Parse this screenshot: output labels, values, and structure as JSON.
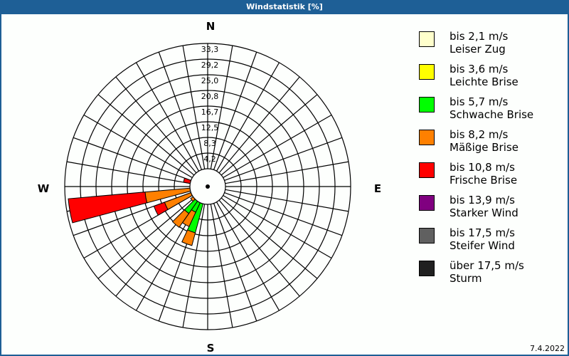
{
  "window": {
    "title": "Windstatistik [%]",
    "date": "7.4.2022"
  },
  "compass": {
    "N": "N",
    "E": "E",
    "S": "S",
    "W": "W"
  },
  "chart_data": {
    "type": "wind-rose",
    "title": "Windstatistik [%]",
    "radial_ticks": [
      "4,2",
      "8,3",
      "12,5",
      "16,7",
      "20,8",
      "25,0",
      "29,2",
      "33,3"
    ],
    "rmax": 33.3,
    "sector_width_deg": 10,
    "speed_classes": [
      {
        "label": "bis 2,1 m/s",
        "name": "Leiser Zug",
        "color": "#ffffcc"
      },
      {
        "label": "bis 3,6 m/s",
        "name": "Leichte Brise",
        "color": "#ffff00"
      },
      {
        "label": "bis 5,7 m/s",
        "name": "Schwache Brise",
        "color": "#00ff00"
      },
      {
        "label": "bis 8,2 m/s",
        "name": "Mäßige Brise",
        "color": "#ff8000"
      },
      {
        "label": "bis 10,8 m/s",
        "name": "Frische Brise",
        "color": "#ff0000"
      },
      {
        "label": "bis 13,9 m/s",
        "name": "Starker Wind",
        "color": "#800080"
      },
      {
        "label": "bis 17,5 m/s",
        "name": "Steifer Wind",
        "color": "#606060"
      },
      {
        "label": "über 17,5 m/s",
        "name": "Sturm",
        "color": "#202020"
      }
    ],
    "sectors": [
      {
        "dir": 200,
        "segments": [
          {
            "cls": 2,
            "to": 8.0
          },
          {
            "cls": 3,
            "to": 11.5
          }
        ]
      },
      {
        "dir": 210,
        "segments": [
          {
            "cls": 2,
            "to": 2.8
          },
          {
            "cls": 3,
            "to": 7.0
          }
        ]
      },
      {
        "dir": 220,
        "segments": [
          {
            "cls": 2,
            "to": 4.0
          },
          {
            "cls": 3,
            "to": 8.5
          }
        ]
      },
      {
        "dir": 230,
        "segments": [
          {
            "cls": 3,
            "to": 0.8
          }
        ]
      },
      {
        "dir": 245,
        "segments": [
          {
            "cls": 3,
            "to": 7.5
          },
          {
            "cls": 4,
            "to": 10.5
          }
        ]
      },
      {
        "dir": 260,
        "segments": [
          {
            "cls": 3,
            "to": 12.0
          },
          {
            "cls": 4,
            "to": 32.5
          }
        ]
      },
      {
        "dir": 285,
        "segments": [
          {
            "cls": 4,
            "to": 1.8
          }
        ]
      }
    ]
  },
  "legend": [
    {
      "line1": "bis 2,1 m/s",
      "line2": "Leiser Zug",
      "color": "#ffffcc"
    },
    {
      "line1": "bis 3,6 m/s",
      "line2": "Leichte Brise",
      "color": "#ffff00"
    },
    {
      "line1": "bis 5,7 m/s",
      "line2": "Schwache Brise",
      "color": "#00ff00"
    },
    {
      "line1": "bis 8,2 m/s",
      "line2": "Mäßige Brise",
      "color": "#ff8000"
    },
    {
      "line1": "bis 10,8 m/s",
      "line2": "Frische Brise",
      "color": "#ff0000"
    },
    {
      "line1": "bis 13,9 m/s",
      "line2": "Starker Wind",
      "color": "#800080"
    },
    {
      "line1": "bis 17,5 m/s",
      "line2": "Steifer Wind",
      "color": "#606060"
    },
    {
      "line1": "über 17,5 m/s",
      "line2": "Sturm",
      "color": "#202020"
    }
  ]
}
